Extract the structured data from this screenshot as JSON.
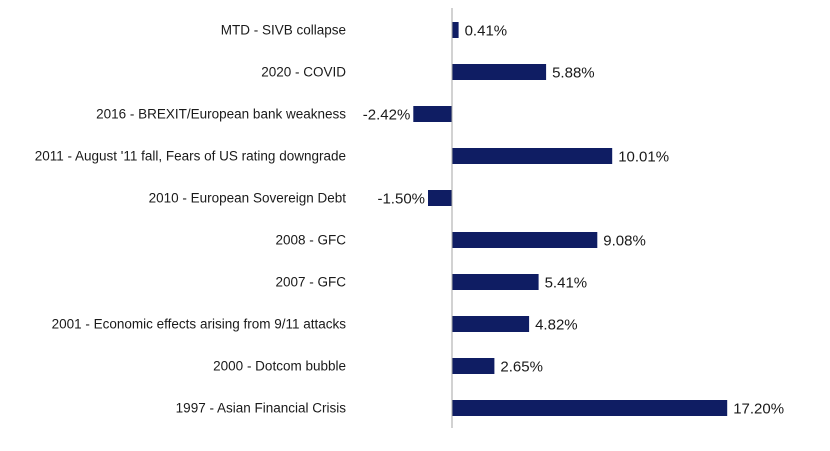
{
  "chart_data": {
    "type": "bar",
    "orientation": "horizontal",
    "categories": [
      "MTD - SIVB collapse",
      "2020 - COVID",
      "2016 - BREXIT/European bank weakness",
      "2011 - August '11 fall, Fears of US rating downgrade",
      "2010 - European Sovereign Debt",
      "2008 - GFC",
      "2007 - GFC",
      "2001 - Economic effects arising from 9/11 attacks",
      "2000 - Dotcom bubble",
      "1997 - Asian Financial Crisis"
    ],
    "values": [
      0.41,
      5.88,
      -2.42,
      10.01,
      -1.5,
      9.08,
      5.41,
      4.82,
      2.65,
      17.2
    ],
    "value_labels": [
      "0.41%",
      "5.88%",
      "-2.42%",
      "10.01%",
      "-1.50%",
      "9.08%",
      "5.41%",
      "4.82%",
      "2.65%",
      "17.20%"
    ],
    "title": "",
    "xlabel": "",
    "ylabel": "",
    "xlim": [
      -2.42,
      17.2
    ],
    "grid": false,
    "legend": "none",
    "bar_color": "#0f1d63",
    "axis_color": "#a6a6a6"
  }
}
